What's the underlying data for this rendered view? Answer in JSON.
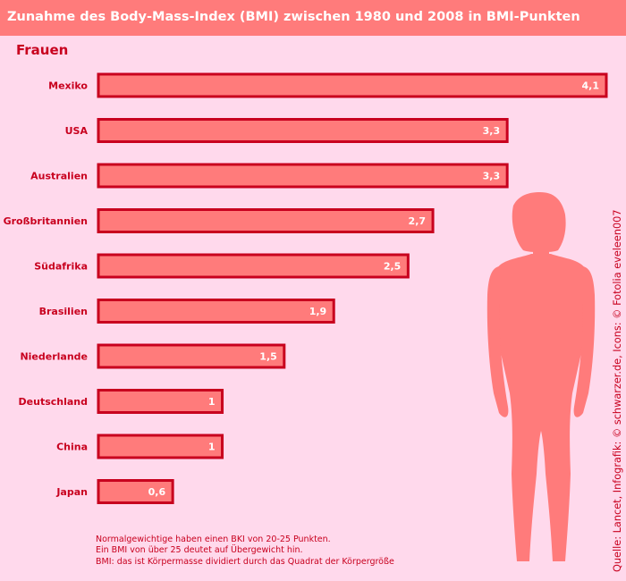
{
  "title": "Zunahme des Body-Mass-Index (BMI) zwischen 1980 und 2008 in BMI-Punkten",
  "subtitle": "Frauen",
  "notes": [
    "Normalgewichtige haben einen BKI von 20-25 Punkten.",
    "Ein BMI von über 25 deutet auf Übergewicht hin.",
    "BMI: das ist Körpermasse dividiert durch das Quadrat der Körpergröße"
  ],
  "source": "Quelle: Lancet, Infografik: © schwarzer.de, Icons: © Fotolia eveleen007",
  "icon": "woman-silhouette-icon",
  "colors": {
    "background": "#ffd9ec",
    "title_bar": "#ff7b7b",
    "bar_fill": "#ff7b7b",
    "bar_border": "#c8001e",
    "text": "#c8001e",
    "silhouette": "#ff7b7b"
  },
  "chart_data": {
    "type": "bar",
    "orientation": "horizontal",
    "title": "Zunahme des Body-Mass-Index (BMI) zwischen 1980 und 2008 in BMI-Punkten",
    "subtitle": "Frauen",
    "categories": [
      "Mexiko",
      "USA",
      "Australien",
      "Großbritannien",
      "Südafrika",
      "Brasilien",
      "Niederlande",
      "Deutschland",
      "China",
      "Japan"
    ],
    "values": [
      4.1,
      3.3,
      3.3,
      2.7,
      2.5,
      1.9,
      1.5,
      1,
      1,
      0.6
    ],
    "value_labels": [
      "4,1",
      "3,3",
      "3,3",
      "2,7",
      "2,5",
      "1,9",
      "1,5",
      "1",
      "1",
      "0,6"
    ],
    "xlim": [
      0,
      4.1
    ],
    "grid": false,
    "legend": "none"
  }
}
